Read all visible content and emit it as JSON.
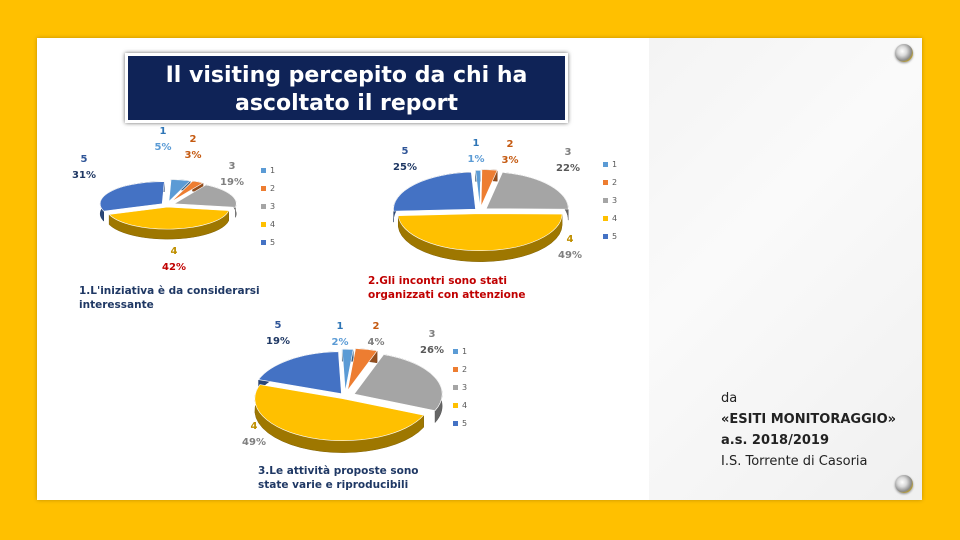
{
  "title": {
    "line1": "Il visiting percepito da chi ha",
    "line2": "ascoltato il report"
  },
  "colors": {
    "s1": "#5B9BD5",
    "s2": "#ED7D31",
    "s3": "#A5A5A5",
    "s4": "#FFC000",
    "s5": "#4472C4",
    "background": "#FFC000",
    "title_bg": "#0F2357"
  },
  "chart_data": [
    {
      "type": "pie",
      "caption": [
        "1.L'iniziativa è da considerarsi",
        "interessante"
      ],
      "categories": [
        "1",
        "2",
        "3",
        "4",
        "5"
      ],
      "values": [
        5,
        3,
        19,
        42,
        31
      ],
      "value_labels": [
        "5%",
        "3%",
        "19%",
        "42%",
        "31%"
      ],
      "legend_position": "right"
    },
    {
      "type": "pie",
      "caption": [
        "2.Gli incontri sono stati",
        "organizzati con attenzione"
      ],
      "categories": [
        "1",
        "2",
        "3",
        "4",
        "5"
      ],
      "values": [
        1,
        3,
        22,
        49,
        25
      ],
      "value_labels": [
        "1%",
        "3%",
        "22%",
        "49%",
        "25%"
      ],
      "legend_position": "right"
    },
    {
      "type": "pie",
      "caption": [
        "3.Le attività proposte sono",
        "state varie e riproducibili"
      ],
      "categories": [
        "1",
        "2",
        "3",
        "4",
        "5"
      ],
      "values": [
        2,
        4,
        26,
        49,
        19
      ],
      "value_labels": [
        "2%",
        "4%",
        "26%",
        "49%",
        "19%"
      ],
      "legend_position": "right"
    }
  ],
  "source": {
    "line1": "da",
    "line2": "«ESITI MONITORAGGIO»",
    "line3": "a.s. 2018/2019",
    "line4": "I.S. Torrente di Casoria"
  }
}
